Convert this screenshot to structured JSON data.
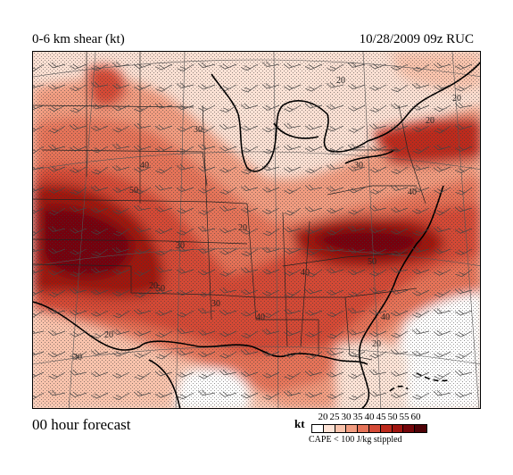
{
  "title_left": "0-6 km shear (kt)",
  "title_right": "10/28/2009  09z  RUC",
  "forecast_label": "00 hour forecast",
  "legend": {
    "units": "kt",
    "levels": [
      "20",
      "25",
      "30",
      "35",
      "40",
      "45",
      "50",
      "55",
      "60"
    ],
    "colors": [
      "#ffffff",
      "#fde3d6",
      "#f9c3ac",
      "#f19c80",
      "#e57358",
      "#d44a36",
      "#bd2a1c",
      "#a01510",
      "#74060a",
      "#4e0207"
    ],
    "note": "CAPE < 100 J/kg stippled"
  },
  "map_labels": [
    "20",
    "20",
    "20",
    "30",
    "40",
    "30",
    "40",
    "50",
    "20",
    "30",
    "40",
    "50",
    "20",
    "30",
    "40",
    "50",
    "20",
    "30",
    "40",
    "20"
  ]
}
